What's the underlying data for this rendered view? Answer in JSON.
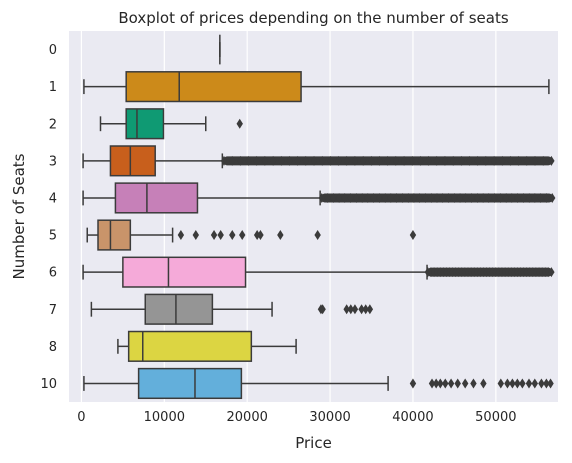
{
  "chart_data": {
    "type": "boxplot",
    "orientation": "horizontal",
    "title": "Boxplot of prices depending on the number of seats",
    "xlabel": "Price",
    "ylabel": "Number of Seats",
    "xlim": [
      -1500,
      57500
    ],
    "xticks": [
      0,
      10000,
      20000,
      30000,
      40000,
      50000
    ],
    "xtick_labels": [
      "0",
      "10000",
      "20000",
      "30000",
      "40000",
      "50000"
    ],
    "grid": true,
    "categories": [
      "0",
      "1",
      "2",
      "3",
      "4",
      "5",
      "6",
      "7",
      "8",
      "10"
    ],
    "boxes": [
      {
        "category": "0",
        "color": "#3a6fb5",
        "whislo": 16700,
        "q1": 16700,
        "med": 16700,
        "q3": 16700,
        "whishi": 16700,
        "fliers": []
      },
      {
        "category": "1",
        "color": "#cc8a1a",
        "whislo": 300,
        "q1": 5400,
        "med": 11800,
        "q3": 26500,
        "whishi": 56400,
        "fliers": []
      },
      {
        "category": "2",
        "color": "#0f9a73",
        "whislo": 2300,
        "q1": 5400,
        "med": 6700,
        "q3": 9900,
        "whishi": 15000,
        "fliers": [
          19100
        ]
      },
      {
        "category": "3",
        "color": "#c85f1c",
        "whislo": 200,
        "q1": 3500,
        "med": 5900,
        "q3": 8900,
        "whishi": 17000,
        "fliers": [],
        "flier_band": [
          17200,
          56700
        ]
      },
      {
        "category": "4",
        "color": "#c680b8",
        "whislo": 200,
        "q1": 4100,
        "med": 7900,
        "q3": 14000,
        "whishi": 28800,
        "fliers": [],
        "flier_band": [
          29000,
          56800
        ]
      },
      {
        "category": "5",
        "color": "#c9946a",
        "whislo": 700,
        "q1": 2000,
        "med": 3500,
        "q3": 5900,
        "whishi": 11000,
        "fliers": [
          12000,
          13800,
          16000,
          16800,
          18200,
          19400,
          21200,
          21600,
          24000,
          28500,
          40000
        ]
      },
      {
        "category": "6",
        "color": "#f5aad9",
        "whislo": 200,
        "q1": 5000,
        "med": 10500,
        "q3": 19800,
        "whishi": 41700,
        "fliers": [],
        "flier_band": [
          41800,
          56700
        ]
      },
      {
        "category": "7",
        "color": "#959595",
        "whislo": 1200,
        "q1": 7700,
        "med": 11400,
        "q3": 15800,
        "whishi": 23000,
        "fliers": [
          28900,
          29100,
          32000,
          32500,
          33000,
          33800,
          34300,
          34800
        ]
      },
      {
        "category": "8",
        "color": "#dcd542",
        "whislo": 4400,
        "q1": 5700,
        "med": 7400,
        "q3": 20500,
        "whishi": 25900,
        "fliers": []
      },
      {
        "category": "10",
        "color": "#63afdb",
        "whislo": 300,
        "q1": 6900,
        "med": 13700,
        "q3": 19300,
        "whishi": 37000,
        "fliers": [
          40000,
          42300,
          42800,
          43300,
          43900,
          44600,
          45400,
          46300,
          47300,
          48500,
          50600,
          51400,
          52000,
          52600,
          53200,
          54000,
          54700,
          55500,
          56100,
          56600
        ]
      }
    ]
  }
}
